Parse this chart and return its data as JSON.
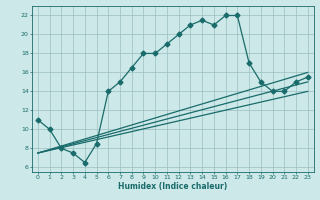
{
  "title": "",
  "xlabel": "Humidex (Indice chaleur)",
  "bg_color": "#cce8e8",
  "line_color": "#1a6b6b",
  "grid_color": "#9bbfbf",
  "xlim": [
    -0.5,
    23.5
  ],
  "ylim": [
    5.5,
    23.0
  ],
  "xticks": [
    0,
    1,
    2,
    3,
    4,
    5,
    6,
    7,
    8,
    9,
    10,
    11,
    12,
    13,
    14,
    15,
    16,
    17,
    18,
    19,
    20,
    21,
    22,
    23
  ],
  "yticks": [
    6,
    8,
    10,
    12,
    14,
    16,
    18,
    20,
    22
  ],
  "line1_x": [
    0,
    1,
    2,
    3,
    4,
    5,
    6,
    7,
    8,
    9,
    10,
    11,
    12,
    13,
    14,
    15,
    16,
    17,
    18,
    19,
    20,
    21,
    22,
    23
  ],
  "line1_y": [
    11,
    10,
    8,
    7.5,
    6.5,
    8.5,
    14,
    15,
    16.5,
    18,
    18,
    19,
    20,
    21,
    21.5,
    21,
    22,
    22,
    17,
    15,
    14,
    14,
    15,
    15.5
  ],
  "line2_x": [
    0,
    23
  ],
  "line2_y": [
    7.5,
    16.0
  ],
  "line3_x": [
    0,
    23
  ],
  "line3_y": [
    7.5,
    15.0
  ],
  "line4_x": [
    0,
    23
  ],
  "line4_y": [
    7.5,
    14.0
  ],
  "marker": "D",
  "markersize": 2.5,
  "linewidth": 0.9
}
